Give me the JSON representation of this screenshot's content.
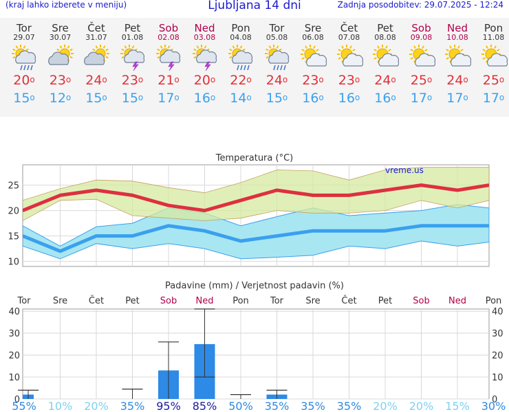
{
  "header": {
    "left_note": "(kraj lahko izberete v meniju)",
    "title": "Ljubljana 14 dni",
    "updated": "Zadnja posodobitev: 29.07.2025 - 12:24"
  },
  "days": [
    {
      "name": "Tor",
      "date": "29.07",
      "icon": "partly-cloudy-rain-icon",
      "tmax": "20",
      "tmin": "15",
      "weekend": false
    },
    {
      "name": "Sre",
      "date": "30.07",
      "icon": "partly-cloudy-icon",
      "tmax": "23",
      "tmin": "12",
      "weekend": false
    },
    {
      "name": "Čet",
      "date": "31.07",
      "icon": "partly-cloudy-icon",
      "tmax": "24",
      "tmin": "15",
      "weekend": false
    },
    {
      "name": "Pet",
      "date": "01.08",
      "icon": "sun-cloud-thunder-icon",
      "tmax": "23",
      "tmin": "15",
      "weekend": false
    },
    {
      "name": "Sob",
      "date": "02.08",
      "icon": "sun-cloud-thunder-icon",
      "tmax": "21",
      "tmin": "17",
      "weekend": true
    },
    {
      "name": "Ned",
      "date": "03.08",
      "icon": "sun-cloud-thunder-icon",
      "tmax": "20",
      "tmin": "16",
      "weekend": true
    },
    {
      "name": "Pon",
      "date": "04.08",
      "icon": "partly-cloudy-rain-icon",
      "tmax": "22",
      "tmin": "14",
      "weekend": false
    },
    {
      "name": "Tor",
      "date": "05.08",
      "icon": "partly-cloudy-rain-icon",
      "tmax": "24",
      "tmin": "15",
      "weekend": false
    },
    {
      "name": "Sre",
      "date": "06.08",
      "icon": "sun-cloud-icon",
      "tmax": "23",
      "tmin": "16",
      "weekend": false
    },
    {
      "name": "Čet",
      "date": "07.08",
      "icon": "sun-cloud-icon",
      "tmax": "23",
      "tmin": "16",
      "weekend": false
    },
    {
      "name": "Pet",
      "date": "08.08",
      "icon": "sun-cloud-icon",
      "tmax": "24",
      "tmin": "16",
      "weekend": false
    },
    {
      "name": "Sob",
      "date": "09.08",
      "icon": "sun-cloud-icon",
      "tmax": "25",
      "tmin": "17",
      "weekend": true
    },
    {
      "name": "Ned",
      "date": "10.08",
      "icon": "sun-cloud-icon",
      "tmax": "24",
      "tmin": "17",
      "weekend": true
    },
    {
      "name": "Pon",
      "date": "11.08",
      "icon": "sun-cloud-icon",
      "tmax": "25",
      "tmin": "17",
      "weekend": false
    }
  ],
  "degree_sign": "o",
  "colors": {
    "max_line": "#dd3040",
    "min_line": "#3aa0ee",
    "max_band": "#d6eaa0",
    "min_band": "#a8e6f2",
    "overlap": "#90d880",
    "bar": "#2d8ae6",
    "weekend": "#b0004a",
    "header": "#1a1ad0"
  },
  "chart_data": [
    {
      "type": "line",
      "title": "Temperatura (°C)",
      "watermark": "vreme.us",
      "categories": [
        "Tor",
        "Sre",
        "Čet",
        "Pet",
        "Sob",
        "Ned",
        "Pon",
        "Tor",
        "Sre",
        "Čet",
        "Pet",
        "Sob",
        "Ned",
        "Pon"
      ],
      "ylim": [
        9,
        29
      ],
      "yticks": [
        10,
        15,
        20,
        25
      ],
      "grid": true,
      "series": [
        {
          "name": "max",
          "values": [
            20,
            23,
            24,
            23,
            21,
            20,
            22,
            24,
            23,
            23,
            24,
            25,
            24,
            25
          ]
        },
        {
          "name": "min",
          "values": [
            15,
            12,
            15,
            15,
            17,
            16,
            14,
            15,
            16,
            16,
            16,
            17,
            17,
            17
          ]
        }
      ],
      "max_band": {
        "upper": [
          22,
          24.3,
          26,
          25.8,
          24.5,
          23.5,
          25.5,
          28,
          27.8,
          26,
          28,
          28.5,
          28.5,
          28.5
        ],
        "lower": [
          18,
          22,
          22.2,
          19,
          18.5,
          18,
          18.5,
          20,
          19.5,
          19.5,
          20,
          22,
          20.5,
          22
        ]
      },
      "min_band": {
        "upper": [
          17,
          13,
          16.8,
          17.5,
          20.5,
          19.5,
          17,
          18.8,
          20.5,
          19,
          19.5,
          20,
          21.2,
          20.5
        ],
        "lower": [
          13,
          10.5,
          13.5,
          12.5,
          13.5,
          12.5,
          10.5,
          10.8,
          11.2,
          13,
          12.5,
          14,
          13,
          13.8
        ]
      }
    },
    {
      "type": "bar",
      "title": "Padavine (mm) / Verjetnost padavin (%)",
      "categories": [
        "Tor",
        "Sre",
        "Čet",
        "Pet",
        "Sob",
        "Ned",
        "Pon",
        "Tor",
        "Sre",
        "Čet",
        "Pet",
        "Sob",
        "Ned",
        "Pon"
      ],
      "ylim": [
        0,
        41
      ],
      "yticks": [
        0,
        10,
        20,
        30,
        40
      ],
      "grid": true,
      "values": [
        2,
        0,
        0,
        0,
        13,
        25,
        0,
        2,
        0,
        0,
        0,
        0,
        0,
        0
      ],
      "error_low": [
        0,
        0,
        0,
        0,
        0,
        10,
        0,
        0,
        0,
        0,
        0,
        0,
        0,
        0
      ],
      "error_high": [
        4,
        0,
        0,
        4.5,
        26,
        41,
        2,
        4,
        0,
        0,
        0,
        0,
        0,
        0
      ],
      "probability": [
        "55%",
        "10%",
        "20%",
        "35%",
        "95%",
        "85%",
        "50%",
        "35%",
        "35%",
        "35%",
        "20%",
        "20%",
        "15%",
        "30%"
      ]
    }
  ]
}
